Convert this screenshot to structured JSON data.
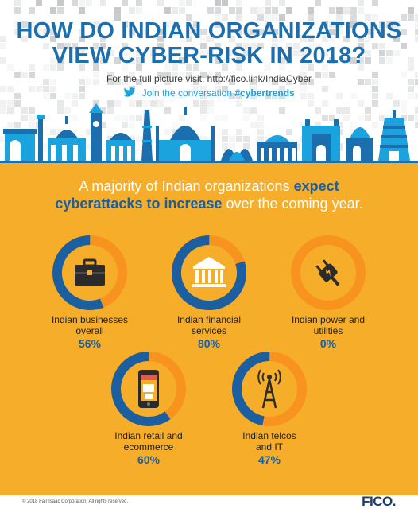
{
  "header": {
    "title_line1": "HOW DO INDIAN ORGANIZATIONS",
    "title_line2": "VIEW CYBER-RISK IN 2018?",
    "full_picture": "For the full picture visit: http://fico.link/IndiaCyber",
    "join_text": "Join the conversation",
    "hashtag": "#cybertrends",
    "twitter_icon": "twitter-bird-icon"
  },
  "headline": {
    "part1": "A majority of Indian organizations",
    "highlight1": "expect",
    "highlight2": "cyberattacks to increase",
    "part2": "over the coming year."
  },
  "stats": [
    {
      "icon": "briefcase-icon",
      "label_line1": "Indian businesses",
      "label_line2": "overall",
      "value": "56%",
      "fraction": 0.56
    },
    {
      "icon": "bank-building-icon",
      "label_line1": "Indian financial",
      "label_line2": "services",
      "value": "80%",
      "fraction": 0.8
    },
    {
      "icon": "power-plug-icon",
      "label_line1": "Indian power and",
      "label_line2": "utilities",
      "value": "0%",
      "fraction": 0.0
    },
    {
      "icon": "smartphone-shop-icon",
      "label_line1": "Indian retail and",
      "label_line2": "ecommerce",
      "value": "60%",
      "fraction": 0.6
    },
    {
      "icon": "cell-tower-icon",
      "label_line1": "Indian telcos",
      "label_line2": "and IT",
      "value": "47%",
      "fraction": 0.47
    }
  ],
  "colors": {
    "ring_fill": "#1b5fa0",
    "ring_track": "#f7931e",
    "background": "#f5ad2a",
    "title": "#1b6fae",
    "hashtag": "#1aa3dc"
  },
  "footer": {
    "copyright": "© 2018 Fair Isaac Corporation. All rights reserved.",
    "logo": "FICO."
  }
}
